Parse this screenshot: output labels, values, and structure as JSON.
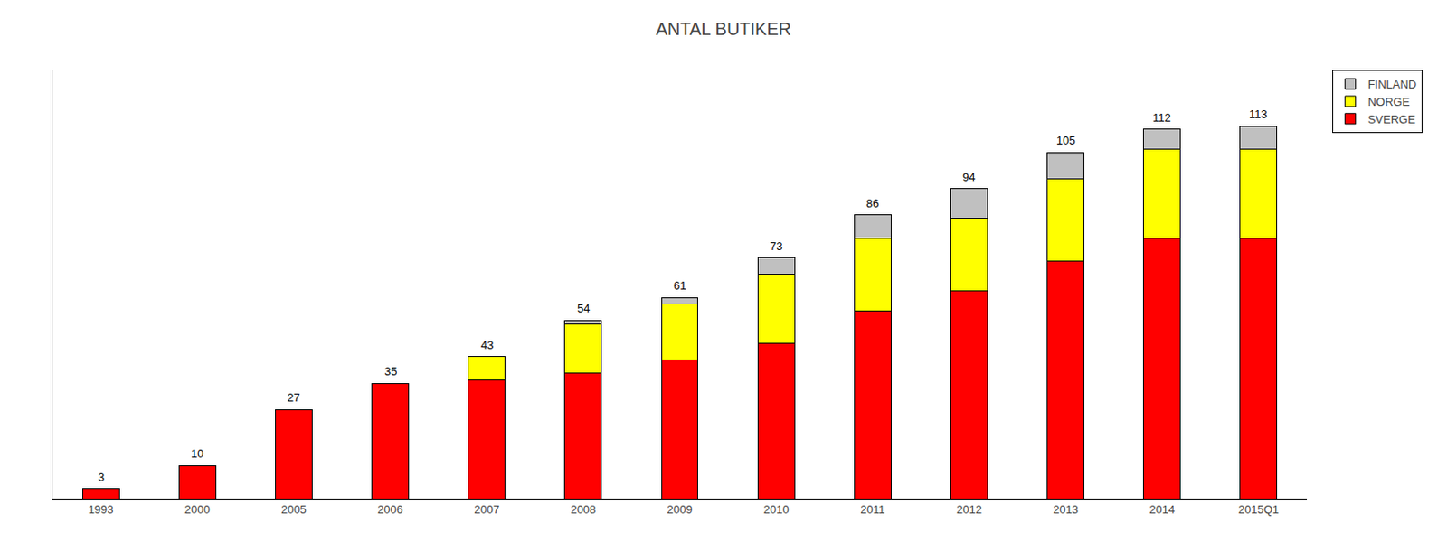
{
  "chart_data": {
    "type": "bar",
    "title": "ANTAL BUTIKER",
    "categories": [
      "1993",
      "2000",
      "2005",
      "2006",
      "2007",
      "2008",
      "2009",
      "2010",
      "2011",
      "2012",
      "2013",
      "2014",
      "2015Q1"
    ],
    "series": [
      {
        "name": "SVERGE",
        "color": "#ff0000",
        "values": [
          3,
          10,
          27,
          35,
          36,
          38,
          42,
          47,
          57,
          63,
          72,
          79,
          79
        ]
      },
      {
        "name": "NORGE",
        "color": "#ffff00",
        "values": [
          0,
          0,
          0,
          0,
          7,
          15,
          17,
          21,
          22,
          22,
          25,
          27,
          27
        ]
      },
      {
        "name": "FINLAND",
        "color": "#c0c0c0",
        "values": [
          0,
          0,
          0,
          0,
          0,
          1,
          2,
          5,
          7,
          9,
          8,
          6,
          7
        ]
      }
    ],
    "totals": [
      3,
      10,
      27,
      35,
      43,
      54,
      61,
      73,
      86,
      94,
      105,
      112,
      113
    ],
    "stacked": true,
    "ylim": [
      0,
      130
    ],
    "tick_labels": "x",
    "grid": false,
    "legend": "upper right"
  }
}
